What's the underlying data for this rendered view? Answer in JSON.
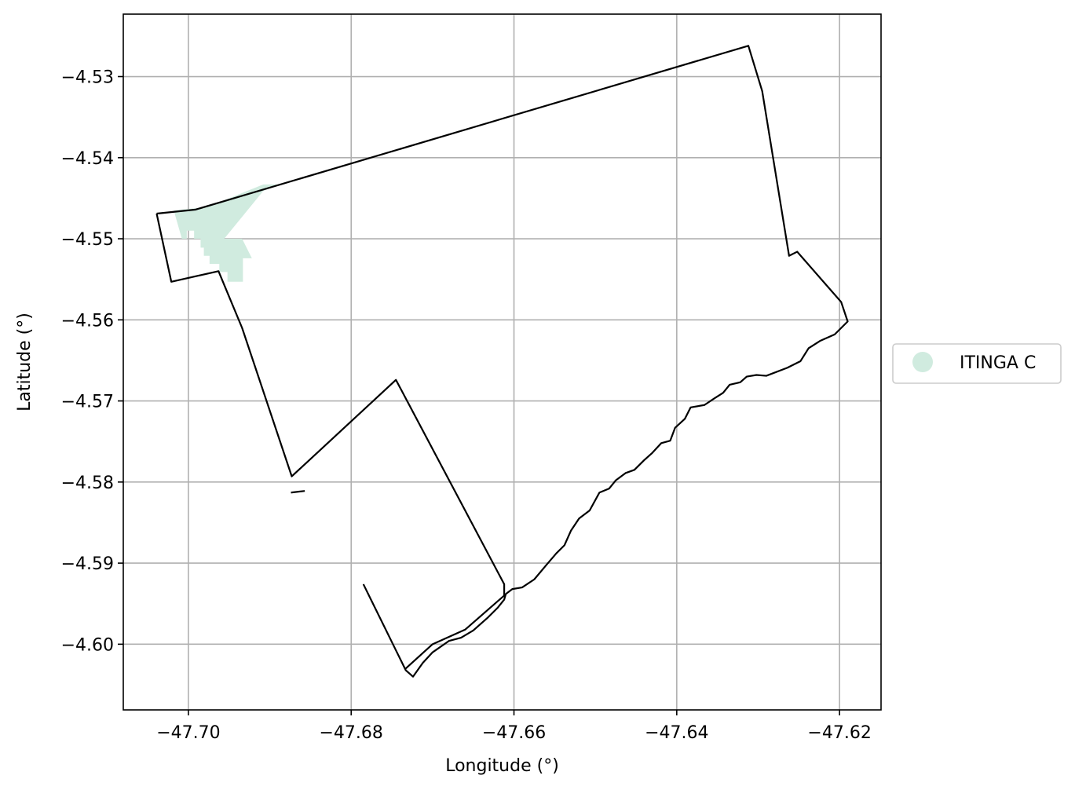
{
  "chart_data": {
    "type": "map",
    "title": "",
    "xlabel": "Longitude (°)",
    "ylabel": "Latitude (°)",
    "xlim": [
      -47.708,
      -47.6149
    ],
    "ylim": [
      -4.6081,
      -4.5223
    ],
    "grid": true,
    "x_ticks": [
      -47.7,
      -47.68,
      -47.66,
      -47.64,
      -47.62
    ],
    "y_ticks": [
      -4.53,
      -4.54,
      -4.55,
      -4.56,
      -4.57,
      -4.58,
      -4.59,
      -4.6
    ],
    "x_tick_labels": [
      "−47.70",
      "−47.68",
      "−47.66",
      "−47.64",
      "−47.62"
    ],
    "y_tick_labels": [
      "−4.53",
      "−4.54",
      "−4.55",
      "−4.56",
      "−4.57",
      "−4.58",
      "−4.59",
      "−4.60"
    ],
    "legend": {
      "placement": "right",
      "entries": [
        {
          "label": "ITINGA C",
          "color": "#d0ebdf"
        }
      ]
    },
    "fill_color": "#d0ebdf",
    "boundary_color": "#000000",
    "filled_region": [
      [
        -47.6977,
        -4.5461
      ],
      [
        -47.6908,
        -4.5433
      ],
      [
        -47.6888,
        -4.5433
      ],
      [
        -47.6908,
        -4.5441
      ],
      [
        -47.6956,
        -4.55
      ],
      [
        -47.6934,
        -4.55
      ],
      [
        -47.6922,
        -4.5524
      ],
      [
        -47.6933,
        -4.5524
      ],
      [
        -47.6933,
        -4.5553
      ],
      [
        -47.6952,
        -4.5553
      ],
      [
        -47.6952,
        -4.5541
      ],
      [
        -47.6962,
        -4.5541
      ],
      [
        -47.6962,
        -4.5531
      ],
      [
        -47.6974,
        -4.5531
      ],
      [
        -47.6974,
        -4.5521
      ],
      [
        -47.6981,
        -4.5521
      ],
      [
        -47.6981,
        -4.5511
      ],
      [
        -47.6985,
        -4.5511
      ],
      [
        -47.6985,
        -4.55
      ],
      [
        -47.6993,
        -4.55
      ],
      [
        -47.6993,
        -4.549
      ],
      [
        -47.7002,
        -4.549
      ],
      [
        -47.7002,
        -4.55
      ],
      [
        -47.7008,
        -4.55
      ],
      [
        -47.7018,
        -4.5465
      ]
    ],
    "boundary_lines": [
      [
        [
          -47.7039,
          -4.5469
        ],
        [
          -47.6991,
          -4.5464
        ],
        [
          -47.6312,
          -4.5262
        ],
        [
          -47.6295,
          -4.5318
        ],
        [
          -47.6262,
          -4.5521
        ],
        [
          -47.6252,
          -4.5516
        ],
        [
          -47.6198,
          -4.5578
        ],
        [
          -47.619,
          -4.5602
        ],
        [
          -47.6206,
          -4.5618
        ],
        [
          -47.6224,
          -4.5626
        ],
        [
          -47.6238,
          -4.5635
        ],
        [
          -47.6248,
          -4.5651
        ],
        [
          -47.6264,
          -4.5659
        ],
        [
          -47.629,
          -4.5669
        ],
        [
          -47.6302,
          -4.5668
        ],
        [
          -47.6314,
          -4.567
        ],
        [
          -47.6322,
          -4.5677
        ],
        [
          -47.6335,
          -4.568
        ],
        [
          -47.6343,
          -4.569
        ],
        [
          -47.6354,
          -4.5697
        ],
        [
          -47.6366,
          -4.5705
        ],
        [
          -47.6383,
          -4.5708
        ],
        [
          -47.639,
          -4.5722
        ],
        [
          -47.6402,
          -4.5733
        ],
        [
          -47.6408,
          -4.5749
        ],
        [
          -47.6419,
          -4.5752
        ],
        [
          -47.643,
          -4.5764
        ],
        [
          -47.644,
          -4.5773
        ],
        [
          -47.6452,
          -4.5785
        ],
        [
          -47.6463,
          -4.5789
        ],
        [
          -47.6475,
          -4.5798
        ],
        [
          -47.6483,
          -4.5808
        ],
        [
          -47.6495,
          -4.5813
        ],
        [
          -47.6507,
          -4.5835
        ],
        [
          -47.652,
          -4.5845
        ],
        [
          -47.653,
          -4.586
        ],
        [
          -47.6538,
          -4.5878
        ],
        [
          -47.6548,
          -4.5888
        ],
        [
          -47.656,
          -4.5902
        ],
        [
          -47.6575,
          -4.592
        ],
        [
          -47.659,
          -4.593
        ],
        [
          -47.6602,
          -4.5932
        ],
        [
          -47.661,
          -4.5938
        ],
        [
          -47.6612,
          -4.5945
        ],
        [
          -47.662,
          -4.5955
        ],
        [
          -47.6632,
          -4.5967
        ],
        [
          -47.665,
          -4.5983
        ],
        [
          -47.6665,
          -4.5992
        ],
        [
          -47.668,
          -4.5996
        ],
        [
          -47.67,
          -4.601
        ],
        [
          -47.6712,
          -4.6023
        ],
        [
          -47.6724,
          -4.604
        ],
        [
          -47.6733,
          -4.6032
        ],
        [
          -47.6785,
          -4.5926
        ]
      ],
      [
        [
          -47.6733,
          -4.603
        ],
        [
          -47.67,
          -4.6
        ],
        [
          -47.666,
          -4.5982
        ],
        [
          -47.6612,
          -4.594
        ],
        [
          -47.6612,
          -4.5926
        ],
        [
          -47.6745,
          -4.5674
        ],
        [
          -47.6873,
          -4.5793
        ],
        [
          -47.6934,
          -4.561
        ],
        [
          -47.6963,
          -4.554
        ],
        [
          -47.7021,
          -4.5553
        ],
        [
          -47.7039,
          -4.5469
        ]
      ],
      [
        [
          -47.6874,
          -4.5813
        ],
        [
          -47.6857,
          -4.5811
        ]
      ]
    ]
  }
}
